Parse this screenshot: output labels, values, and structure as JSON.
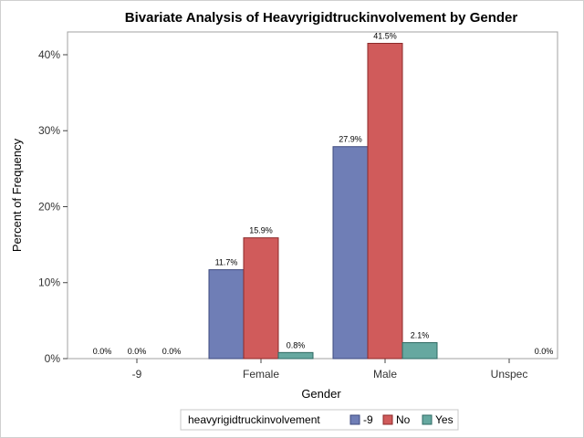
{
  "chart_data": {
    "type": "bar",
    "title": "Bivariate Analysis of Heavyrigidtruckinvolvement by Gender",
    "xlabel": "Gender",
    "ylabel": "Percent of Frequency",
    "categories": [
      "-9",
      "Female",
      "Male",
      "Unspec"
    ],
    "ylim": [
      0,
      43
    ],
    "yticks": [
      0,
      10,
      20,
      30,
      40
    ],
    "ytick_labels": [
      "0%",
      "10%",
      "20%",
      "30%",
      "40%"
    ],
    "legend_title": "heavyrigidtruckinvolvement",
    "legend_position": "bottom",
    "grid": false,
    "series": [
      {
        "name": "-9",
        "color": "#6f7eb6",
        "stroke": "#3e4a7e",
        "values": [
          0.0,
          11.7,
          27.9,
          null
        ],
        "labels": [
          "0.0%",
          "11.7%",
          "27.9%",
          ""
        ]
      },
      {
        "name": "No",
        "color": "#d05b5b",
        "stroke": "#8c2a2a",
        "values": [
          0.0,
          15.9,
          41.5,
          null
        ],
        "labels": [
          "0.0%",
          "15.9%",
          "41.5%",
          ""
        ]
      },
      {
        "name": "Yes",
        "color": "#66a8a0",
        "stroke": "#2f6a63",
        "values": [
          0.0,
          0.8,
          2.1,
          0.0
        ],
        "labels": [
          "0.0%",
          "0.8%",
          "2.1%",
          "0.0%"
        ]
      }
    ]
  }
}
